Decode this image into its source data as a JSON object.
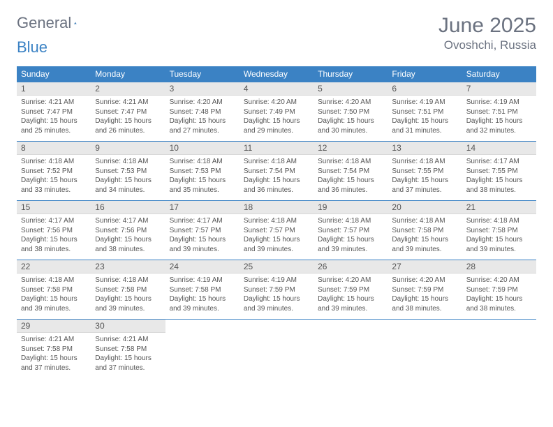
{
  "brand": {
    "word1": "General",
    "word2": "Blue"
  },
  "header": {
    "title": "June 2025",
    "location": "Ovoshchi, Russia"
  },
  "colors": {
    "header_bg": "#3b82c4",
    "header_fg": "#ffffff",
    "daynum_bg": "#e8e8e8",
    "text": "#555555",
    "rule": "#3b82c4",
    "title_color": "#6b7280"
  },
  "weekdays": [
    "Sunday",
    "Monday",
    "Tuesday",
    "Wednesday",
    "Thursday",
    "Friday",
    "Saturday"
  ],
  "weeks": [
    [
      {
        "n": "1",
        "sr": "4:21 AM",
        "ss": "7:47 PM",
        "dl": "15 hours and 25 minutes."
      },
      {
        "n": "2",
        "sr": "4:21 AM",
        "ss": "7:47 PM",
        "dl": "15 hours and 26 minutes."
      },
      {
        "n": "3",
        "sr": "4:20 AM",
        "ss": "7:48 PM",
        "dl": "15 hours and 27 minutes."
      },
      {
        "n": "4",
        "sr": "4:20 AM",
        "ss": "7:49 PM",
        "dl": "15 hours and 29 minutes."
      },
      {
        "n": "5",
        "sr": "4:20 AM",
        "ss": "7:50 PM",
        "dl": "15 hours and 30 minutes."
      },
      {
        "n": "6",
        "sr": "4:19 AM",
        "ss": "7:51 PM",
        "dl": "15 hours and 31 minutes."
      },
      {
        "n": "7",
        "sr": "4:19 AM",
        "ss": "7:51 PM",
        "dl": "15 hours and 32 minutes."
      }
    ],
    [
      {
        "n": "8",
        "sr": "4:18 AM",
        "ss": "7:52 PM",
        "dl": "15 hours and 33 minutes."
      },
      {
        "n": "9",
        "sr": "4:18 AM",
        "ss": "7:53 PM",
        "dl": "15 hours and 34 minutes."
      },
      {
        "n": "10",
        "sr": "4:18 AM",
        "ss": "7:53 PM",
        "dl": "15 hours and 35 minutes."
      },
      {
        "n": "11",
        "sr": "4:18 AM",
        "ss": "7:54 PM",
        "dl": "15 hours and 36 minutes."
      },
      {
        "n": "12",
        "sr": "4:18 AM",
        "ss": "7:54 PM",
        "dl": "15 hours and 36 minutes."
      },
      {
        "n": "13",
        "sr": "4:18 AM",
        "ss": "7:55 PM",
        "dl": "15 hours and 37 minutes."
      },
      {
        "n": "14",
        "sr": "4:17 AM",
        "ss": "7:55 PM",
        "dl": "15 hours and 38 minutes."
      }
    ],
    [
      {
        "n": "15",
        "sr": "4:17 AM",
        "ss": "7:56 PM",
        "dl": "15 hours and 38 minutes."
      },
      {
        "n": "16",
        "sr": "4:17 AM",
        "ss": "7:56 PM",
        "dl": "15 hours and 38 minutes."
      },
      {
        "n": "17",
        "sr": "4:17 AM",
        "ss": "7:57 PM",
        "dl": "15 hours and 39 minutes."
      },
      {
        "n": "18",
        "sr": "4:18 AM",
        "ss": "7:57 PM",
        "dl": "15 hours and 39 minutes."
      },
      {
        "n": "19",
        "sr": "4:18 AM",
        "ss": "7:57 PM",
        "dl": "15 hours and 39 minutes."
      },
      {
        "n": "20",
        "sr": "4:18 AM",
        "ss": "7:58 PM",
        "dl": "15 hours and 39 minutes."
      },
      {
        "n": "21",
        "sr": "4:18 AM",
        "ss": "7:58 PM",
        "dl": "15 hours and 39 minutes."
      }
    ],
    [
      {
        "n": "22",
        "sr": "4:18 AM",
        "ss": "7:58 PM",
        "dl": "15 hours and 39 minutes."
      },
      {
        "n": "23",
        "sr": "4:18 AM",
        "ss": "7:58 PM",
        "dl": "15 hours and 39 minutes."
      },
      {
        "n": "24",
        "sr": "4:19 AM",
        "ss": "7:58 PM",
        "dl": "15 hours and 39 minutes."
      },
      {
        "n": "25",
        "sr": "4:19 AM",
        "ss": "7:59 PM",
        "dl": "15 hours and 39 minutes."
      },
      {
        "n": "26",
        "sr": "4:20 AM",
        "ss": "7:59 PM",
        "dl": "15 hours and 39 minutes."
      },
      {
        "n": "27",
        "sr": "4:20 AM",
        "ss": "7:59 PM",
        "dl": "15 hours and 38 minutes."
      },
      {
        "n": "28",
        "sr": "4:20 AM",
        "ss": "7:59 PM",
        "dl": "15 hours and 38 minutes."
      }
    ],
    [
      {
        "n": "29",
        "sr": "4:21 AM",
        "ss": "7:58 PM",
        "dl": "15 hours and 37 minutes."
      },
      {
        "n": "30",
        "sr": "4:21 AM",
        "ss": "7:58 PM",
        "dl": "15 hours and 37 minutes."
      },
      null,
      null,
      null,
      null,
      null
    ]
  ],
  "labels": {
    "sunrise": "Sunrise: ",
    "sunset": "Sunset: ",
    "daylight": "Daylight: "
  }
}
